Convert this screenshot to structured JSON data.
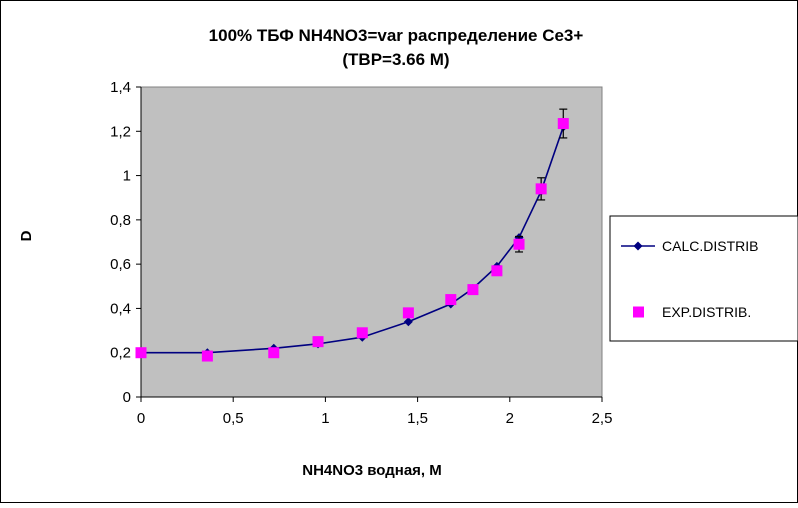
{
  "chart_data": {
    "type": "line",
    "title_line1": "100%  ТБФ  NH4NO3=var распределение Ce3+",
    "title_line2": "(TBP=3.66 M)",
    "xlabel": "NH4NO3  водная, М",
    "ylabel": "D",
    "xlim": [
      0,
      2.5
    ],
    "ylim": [
      0,
      1.4
    ],
    "x_ticks": [
      "0",
      "0,5",
      "1",
      "1,5",
      "2",
      "2,5"
    ],
    "x_tick_values": [
      0,
      0.5,
      1,
      1.5,
      2,
      2.5
    ],
    "y_ticks": [
      "0",
      "0,2",
      "0,4",
      "0,6",
      "0,8",
      "1",
      "1,2",
      "1,4"
    ],
    "y_tick_values": [
      0,
      0.2,
      0.4,
      0.6,
      0.8,
      1.0,
      1.2,
      1.4
    ],
    "grid": false,
    "legend_position": "right",
    "plot_background": "#c0c0c0",
    "series": [
      {
        "name": "CALC.DISTRIB",
        "style": "line-diamond",
        "color": "#000080",
        "x": [
          0,
          0.36,
          0.72,
          0.96,
          1.2,
          1.45,
          1.68,
          1.8,
          1.93,
          2.05,
          2.17,
          2.29
        ],
        "y": [
          0.2,
          0.2,
          0.22,
          0.24,
          0.27,
          0.34,
          0.42,
          0.49,
          0.59,
          0.72,
          0.93,
          1.22
        ]
      },
      {
        "name": "EXP.DISTRIB.",
        "style": "square-marker",
        "color": "#ff00ff",
        "x": [
          0,
          0.36,
          0.72,
          0.96,
          1.2,
          1.45,
          1.68,
          1.8,
          1.93,
          2.05,
          2.17,
          2.29
        ],
        "y": [
          0.2,
          0.185,
          0.2,
          0.25,
          0.29,
          0.38,
          0.44,
          0.485,
          0.57,
          0.69,
          0.94,
          1.235
        ],
        "err": [
          0,
          0,
          0,
          0,
          0,
          0,
          0,
          0,
          0.02,
          0.035,
          0.05,
          0.065
        ]
      }
    ]
  }
}
